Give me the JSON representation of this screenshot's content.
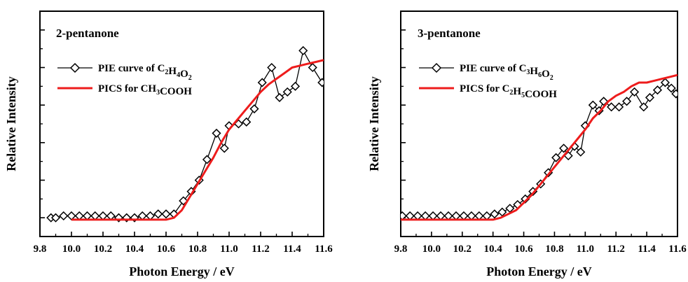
{
  "chart_data": [
    {
      "type": "line",
      "title": "2-pentanone",
      "xlabel": "Photon Energy / eV",
      "ylabel": "Relative Intensity",
      "xlim": [
        9.8,
        11.6
      ],
      "ylim": [
        0,
        1
      ],
      "x_ticks": [
        "9.8",
        "10.0",
        "10.2",
        "10.4",
        "10.6",
        "10.8",
        "11.0",
        "11.2",
        "11.4",
        "11.6"
      ],
      "y_tick_labels_shown": false,
      "legend_position": "top-left",
      "series": [
        {
          "name": "PIE curve of C2H4O2",
          "legend": {
            "base": "PIE curve of ",
            "parts": [
              [
                "C",
                ""
              ],
              [
                "2",
                "sub"
              ],
              [
                "H",
                ""
              ],
              [
                "4",
                "sub"
              ],
              [
                "O",
                ""
              ],
              [
                "2",
                "sub"
              ]
            ]
          },
          "style": "line-diamond",
          "color": "#000000",
          "points": [
            [
              9.87,
              0.0
            ],
            [
              9.9,
              0.0
            ],
            [
              9.95,
              0.01
            ],
            [
              10.0,
              0.01
            ],
            [
              10.05,
              0.01
            ],
            [
              10.1,
              0.01
            ],
            [
              10.15,
              0.01
            ],
            [
              10.2,
              0.01
            ],
            [
              10.25,
              0.01
            ],
            [
              10.3,
              0.0
            ],
            [
              10.35,
              0.0
            ],
            [
              10.4,
              0.0
            ],
            [
              10.45,
              0.01
            ],
            [
              10.5,
              0.01
            ],
            [
              10.55,
              0.02
            ],
            [
              10.6,
              0.02
            ],
            [
              10.65,
              0.02
            ],
            [
              10.71,
              0.09
            ],
            [
              10.76,
              0.14
            ],
            [
              10.81,
              0.2
            ],
            [
              10.86,
              0.31
            ],
            [
              10.92,
              0.45
            ],
            [
              10.97,
              0.37
            ],
            [
              11.0,
              0.49
            ],
            [
              11.06,
              0.5
            ],
            [
              11.11,
              0.51
            ],
            [
              11.16,
              0.58
            ],
            [
              11.21,
              0.72
            ],
            [
              11.27,
              0.8
            ],
            [
              11.32,
              0.64
            ],
            [
              11.37,
              0.67
            ],
            [
              11.42,
              0.7
            ],
            [
              11.47,
              0.89
            ],
            [
              11.53,
              0.8
            ],
            [
              11.59,
              0.72
            ]
          ]
        },
        {
          "name": "PICS for CH3COOH",
          "legend": {
            "base": "PICS for ",
            "parts": [
              [
                "CH",
                ""
              ],
              [
                "3",
                "sub"
              ],
              [
                "COOH",
                ""
              ]
            ]
          },
          "style": "line",
          "color": "#ee1c1c",
          "points": [
            [
              10.0,
              -0.01
            ],
            [
              10.2,
              -0.01
            ],
            [
              10.4,
              -0.01
            ],
            [
              10.6,
              -0.01
            ],
            [
              10.65,
              0.0
            ],
            [
              10.7,
              0.04
            ],
            [
              10.75,
              0.11
            ],
            [
              10.8,
              0.18
            ],
            [
              10.85,
              0.25
            ],
            [
              10.9,
              0.32
            ],
            [
              10.95,
              0.4
            ],
            [
              11.0,
              0.47
            ],
            [
              11.05,
              0.52
            ],
            [
              11.1,
              0.57
            ],
            [
              11.15,
              0.62
            ],
            [
              11.2,
              0.67
            ],
            [
              11.25,
              0.71
            ],
            [
              11.3,
              0.74
            ],
            [
              11.35,
              0.77
            ],
            [
              11.4,
              0.8
            ],
            [
              11.45,
              0.81
            ],
            [
              11.5,
              0.82
            ],
            [
              11.55,
              0.83
            ],
            [
              11.6,
              0.84
            ]
          ]
        }
      ]
    },
    {
      "type": "line",
      "title": "3-pentanone",
      "xlabel": "Photon Energy / eV",
      "ylabel": "Relative Intensity",
      "xlim": [
        9.8,
        11.6
      ],
      "ylim": [
        0,
        1
      ],
      "x_ticks": [
        "9.8",
        "10.0",
        "10.2",
        "10.4",
        "10.6",
        "10.8",
        "11.0",
        "11.2",
        "11.4",
        "11.6"
      ],
      "y_tick_labels_shown": false,
      "legend_position": "top-left",
      "series": [
        {
          "name": "PIE curve of C3H6O2",
          "legend": {
            "base": "PIE curve of ",
            "parts": [
              [
                "C",
                ""
              ],
              [
                "3",
                "sub"
              ],
              [
                "H",
                ""
              ],
              [
                "6",
                "sub"
              ],
              [
                "O",
                ""
              ],
              [
                "2",
                "sub"
              ]
            ]
          },
          "style": "line-diamond",
          "color": "#000000",
          "points": [
            [
              9.81,
              0.01
            ],
            [
              9.86,
              0.01
            ],
            [
              9.91,
              0.01
            ],
            [
              9.96,
              0.01
            ],
            [
              10.01,
              0.01
            ],
            [
              10.06,
              0.01
            ],
            [
              10.11,
              0.01
            ],
            [
              10.16,
              0.01
            ],
            [
              10.21,
              0.01
            ],
            [
              10.26,
              0.01
            ],
            [
              10.31,
              0.01
            ],
            [
              10.36,
              0.01
            ],
            [
              10.41,
              0.02
            ],
            [
              10.46,
              0.03
            ],
            [
              10.51,
              0.05
            ],
            [
              10.56,
              0.07
            ],
            [
              10.61,
              0.1
            ],
            [
              10.66,
              0.14
            ],
            [
              10.71,
              0.18
            ],
            [
              10.76,
              0.24
            ],
            [
              10.81,
              0.32
            ],
            [
              10.86,
              0.37
            ],
            [
              10.89,
              0.33
            ],
            [
              10.93,
              0.38
            ],
            [
              10.97,
              0.35
            ],
            [
              11.0,
              0.49
            ],
            [
              11.05,
              0.6
            ],
            [
              11.09,
              0.57
            ],
            [
              11.12,
              0.62
            ],
            [
              11.17,
              0.59
            ],
            [
              11.22,
              0.59
            ],
            [
              11.27,
              0.62
            ],
            [
              11.32,
              0.67
            ],
            [
              11.38,
              0.59
            ],
            [
              11.42,
              0.64
            ],
            [
              11.47,
              0.68
            ],
            [
              11.52,
              0.72
            ],
            [
              11.56,
              0.69
            ],
            [
              11.59,
              0.66
            ]
          ]
        },
        {
          "name": "PICS for C2H5COOH",
          "legend": {
            "base": "PICS for  ",
            "parts": [
              [
                "C",
                ""
              ],
              [
                "2",
                "sub"
              ],
              [
                "H",
                ""
              ],
              [
                "5",
                "sub"
              ],
              [
                "COOH",
                ""
              ]
            ]
          },
          "style": "line",
          "color": "#ee1c1c",
          "points": [
            [
              9.8,
              -0.01
            ],
            [
              10.1,
              -0.01
            ],
            [
              10.4,
              -0.01
            ],
            [
              10.45,
              0.0
            ],
            [
              10.5,
              0.02
            ],
            [
              10.55,
              0.04
            ],
            [
              10.6,
              0.08
            ],
            [
              10.65,
              0.12
            ],
            [
              10.7,
              0.17
            ],
            [
              10.75,
              0.22
            ],
            [
              10.8,
              0.27
            ],
            [
              10.85,
              0.32
            ],
            [
              10.9,
              0.37
            ],
            [
              10.95,
              0.42
            ],
            [
              11.0,
              0.47
            ],
            [
              11.05,
              0.53
            ],
            [
              11.1,
              0.57
            ],
            [
              11.15,
              0.62
            ],
            [
              11.2,
              0.65
            ],
            [
              11.25,
              0.67
            ],
            [
              11.3,
              0.7
            ],
            [
              11.35,
              0.72
            ],
            [
              11.4,
              0.72
            ],
            [
              11.45,
              0.73
            ],
            [
              11.5,
              0.74
            ],
            [
              11.55,
              0.75
            ],
            [
              11.6,
              0.76
            ]
          ]
        }
      ]
    }
  ]
}
